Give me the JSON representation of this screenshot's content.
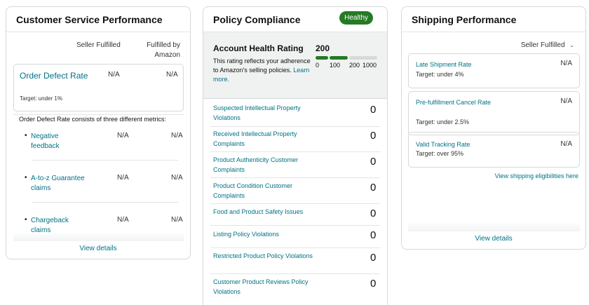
{
  "customer_service": {
    "title": "Customer Service Performance",
    "col_seller": "Seller Fulfilled",
    "col_amazon_1": "Fulfilled by",
    "col_amazon_2": "Amazon",
    "odr_label": "Order Defect Rate",
    "odr_target": "Target: under 1%",
    "odr_seller": "N/A",
    "odr_amazon": "N/A",
    "consists_text": "Order Defect Rate consists of three different metrics:",
    "metrics": [
      {
        "label": "Negative feedback",
        "seller": "N/A",
        "amazon": "N/A"
      },
      {
        "label": "A-to-z Guarantee claims",
        "seller": "N/A",
        "amazon": "N/A"
      },
      {
        "label": "Chargeback claims",
        "seller": "N/A",
        "amazon": "N/A"
      }
    ],
    "view_details": "View details"
  },
  "policy_compliance": {
    "title": "Policy Compliance",
    "status": "Healthy",
    "ahr_title": "Account Health Rating",
    "ahr_score": "200",
    "ahr_desc": "This rating reflects your adherence to Amazon's selling policies.",
    "ahr_learn_more": "Learn more.",
    "scale_ticks": [
      "0",
      "100",
      "200",
      "1000"
    ],
    "colors": {
      "healthy": "#257A24",
      "scale_empty": "#d5d9d9"
    },
    "rows": [
      {
        "label": "Suspected Intellectual Property Violations",
        "value": "0"
      },
      {
        "label": "Received Intellectual Property Complaints",
        "value": "0"
      },
      {
        "label": "Product Authenticity Customer Complaints",
        "value": "0"
      },
      {
        "label": "Product Condition Customer Complaints",
        "value": "0"
      },
      {
        "label": "Food and Product Safety Issues",
        "value": "0"
      },
      {
        "label": "Listing Policy Violations",
        "value": "0"
      },
      {
        "label": "Restricted Product Policy Violations",
        "value": "0"
      },
      {
        "label": "Customer Product Reviews Policy Violations",
        "value": "0"
      }
    ]
  },
  "shipping": {
    "title": "Shipping Performance",
    "dropdown": "Seller Fulfilled",
    "metrics": [
      {
        "label": "Late Shipment Rate",
        "target": "Target: under 4%",
        "value": "N/A"
      },
      {
        "label": "Pre-fulfillment Cancel Rate",
        "target": "Target: under 2.5%",
        "value": "N/A"
      },
      {
        "label": "Valid Tracking Rate",
        "target": "Target: over 95%",
        "value": "N/A"
      }
    ],
    "eligibilities_link": "View shipping eligibilities here",
    "view_details": "View details"
  }
}
